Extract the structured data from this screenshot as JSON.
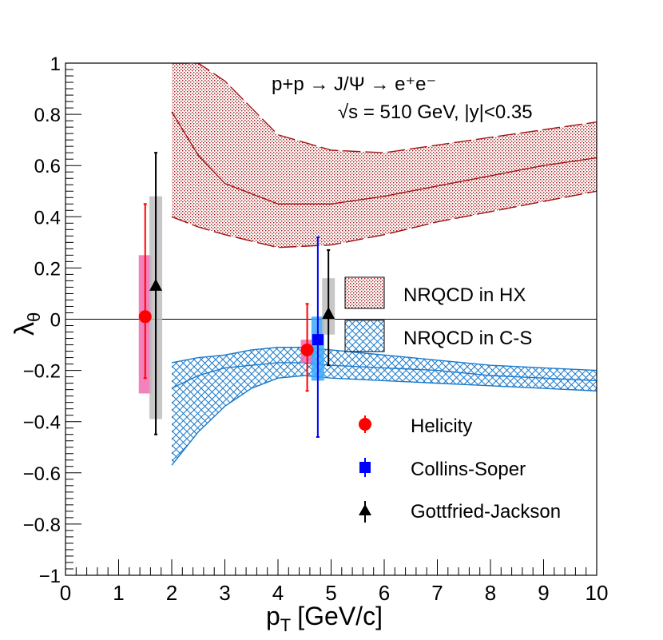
{
  "chart_data": {
    "type": "scatter",
    "title_line1": "p+p → J/Ψ → e⁺e⁻",
    "title_line2": "√s = 510 GeV, |y|<0.35",
    "xlabel": "p",
    "xlabel_sub": "T",
    "xlabel_unit": "[GeV/c]",
    "ylabel": "λ",
    "ylabel_sub": "θ",
    "xlim": [
      0,
      10
    ],
    "ylim": [
      -1,
      1
    ],
    "xticks": [
      0,
      1,
      2,
      3,
      4,
      5,
      6,
      7,
      8,
      9,
      10
    ],
    "xtick_labels": [
      "0",
      "1",
      "2",
      "3",
      "4",
      "5",
      "6",
      "7",
      "8",
      "9",
      "10"
    ],
    "yticks": [
      -1,
      -0.8,
      -0.6,
      -0.4,
      -0.2,
      0,
      0.2,
      0.4,
      0.6,
      0.8,
      1
    ],
    "ytick_labels": [
      "−1",
      "−0.8",
      "−0.6",
      "−0.4",
      "−0.2",
      "0",
      "0.2",
      "0.4",
      "0.6",
      "0.8",
      "1"
    ],
    "colors": {
      "helicity": "#ff0000",
      "collins_soper": "#0000ff",
      "gottfried_jackson": "#000000",
      "hx_band": "#a01010",
      "cs_band": "#1a7acc"
    },
    "bands": [
      {
        "name": "NRQCD in HX",
        "x": [
          2,
          2.5,
          3,
          4,
          5,
          6,
          7,
          8,
          9,
          10
        ],
        "upper": [
          1.0,
          1.0,
          0.93,
          0.72,
          0.66,
          0.65,
          0.68,
          0.71,
          0.74,
          0.77
        ],
        "central": [
          0.81,
          0.64,
          0.53,
          0.45,
          0.45,
          0.48,
          0.52,
          0.56,
          0.6,
          0.63
        ],
        "lower": [
          0.4,
          0.36,
          0.33,
          0.28,
          0.29,
          0.33,
          0.38,
          0.42,
          0.46,
          0.5
        ]
      },
      {
        "name": "NRQCD in C-S",
        "x": [
          2,
          2.5,
          3,
          3.5,
          4,
          4.5,
          5,
          6,
          7,
          8,
          9,
          10
        ],
        "upper": [
          -0.17,
          -0.15,
          -0.14,
          -0.12,
          -0.11,
          -0.11,
          -0.12,
          -0.14,
          -0.16,
          -0.18,
          -0.19,
          -0.2
        ],
        "central": [
          -0.27,
          -0.22,
          -0.19,
          -0.18,
          -0.17,
          -0.17,
          -0.18,
          -0.19,
          -0.2,
          -0.22,
          -0.23,
          -0.24
        ],
        "lower": [
          -0.57,
          -0.44,
          -0.34,
          -0.27,
          -0.23,
          -0.22,
          -0.23,
          -0.24,
          -0.25,
          -0.26,
          -0.27,
          -0.28
        ]
      }
    ],
    "series": [
      {
        "name": "Helicity",
        "marker": "circle",
        "points": [
          {
            "x": 1.5,
            "y": 0.01,
            "stat_low": -0.23,
            "stat_high": 0.45,
            "sys_low": -0.29,
            "sys_high": 0.25
          },
          {
            "x": 4.55,
            "y": -0.12,
            "stat_low": -0.28,
            "stat_high": 0.06,
            "sys_low": -0.17,
            "sys_high": -0.08
          }
        ]
      },
      {
        "name": "Collins-Soper",
        "marker": "square",
        "points": [
          {
            "x": 4.75,
            "y": -0.08,
            "stat_low": -0.46,
            "stat_high": 0.32,
            "sys_low": -0.24,
            "sys_high": 0.01
          }
        ]
      },
      {
        "name": "Gottfried-Jackson",
        "marker": "triangle",
        "points": [
          {
            "x": 1.7,
            "y": 0.13,
            "stat_low": -0.45,
            "stat_high": 0.65,
            "sys_low": -0.39,
            "sys_high": 0.48
          },
          {
            "x": 4.95,
            "y": 0.02,
            "stat_low": -0.18,
            "stat_high": 0.27,
            "sys_low": -0.06,
            "sys_high": 0.16
          }
        ]
      }
    ],
    "legend_bands": [
      "NRQCD in HX",
      "NRQCD in C-S"
    ],
    "legend_markers": [
      "Helicity",
      "Collins-Soper",
      "Gottfried-Jackson"
    ]
  }
}
